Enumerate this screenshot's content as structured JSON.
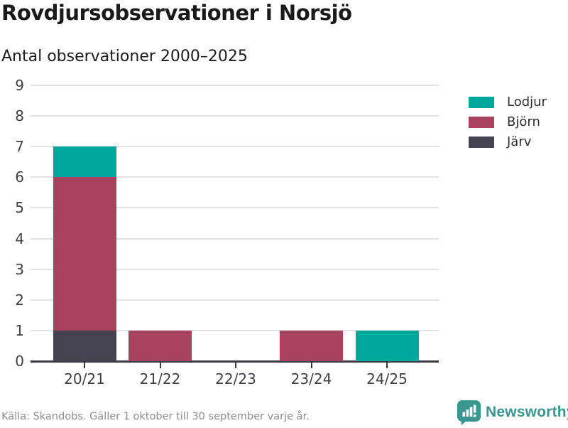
{
  "header": {
    "title": "Rovdjursobservationer i Norsjö",
    "subtitle": "Antal observationer 2000–2025"
  },
  "chart_data": {
    "type": "bar",
    "stacked": true,
    "title": "Rovdjursobservationer i Norsjö",
    "subtitle": "Antal observationer 2000–2025",
    "categories": [
      "20/21",
      "21/22",
      "22/23",
      "23/24",
      "24/25"
    ],
    "series": [
      {
        "name": "Lodjur",
        "color": "#00a79b",
        "values": [
          1,
          0,
          0,
          0,
          1
        ]
      },
      {
        "name": "Björn",
        "color": "#a8435f",
        "values": [
          5,
          1,
          0,
          1,
          0
        ]
      },
      {
        "name": "Järv",
        "color": "#454350",
        "values": [
          1,
          0,
          0,
          0,
          0
        ]
      }
    ],
    "totals_per_category": [
      7,
      1,
      0,
      1,
      1
    ],
    "xlabel": "",
    "ylabel": "",
    "ylim": [
      0,
      9
    ],
    "ytick_step": 1,
    "grid": "horizontal",
    "legend_position": "right"
  },
  "colors": {
    "grid": "#e2e2e2",
    "axis": "#3c3a44",
    "tick_text": "#3f3f46",
    "brand_teal": "#3a968f"
  },
  "footer": {
    "source": "Källa: Skandobs. Gäller 1 oktober till 30 september varje år.",
    "brand": "Newsworthy"
  }
}
